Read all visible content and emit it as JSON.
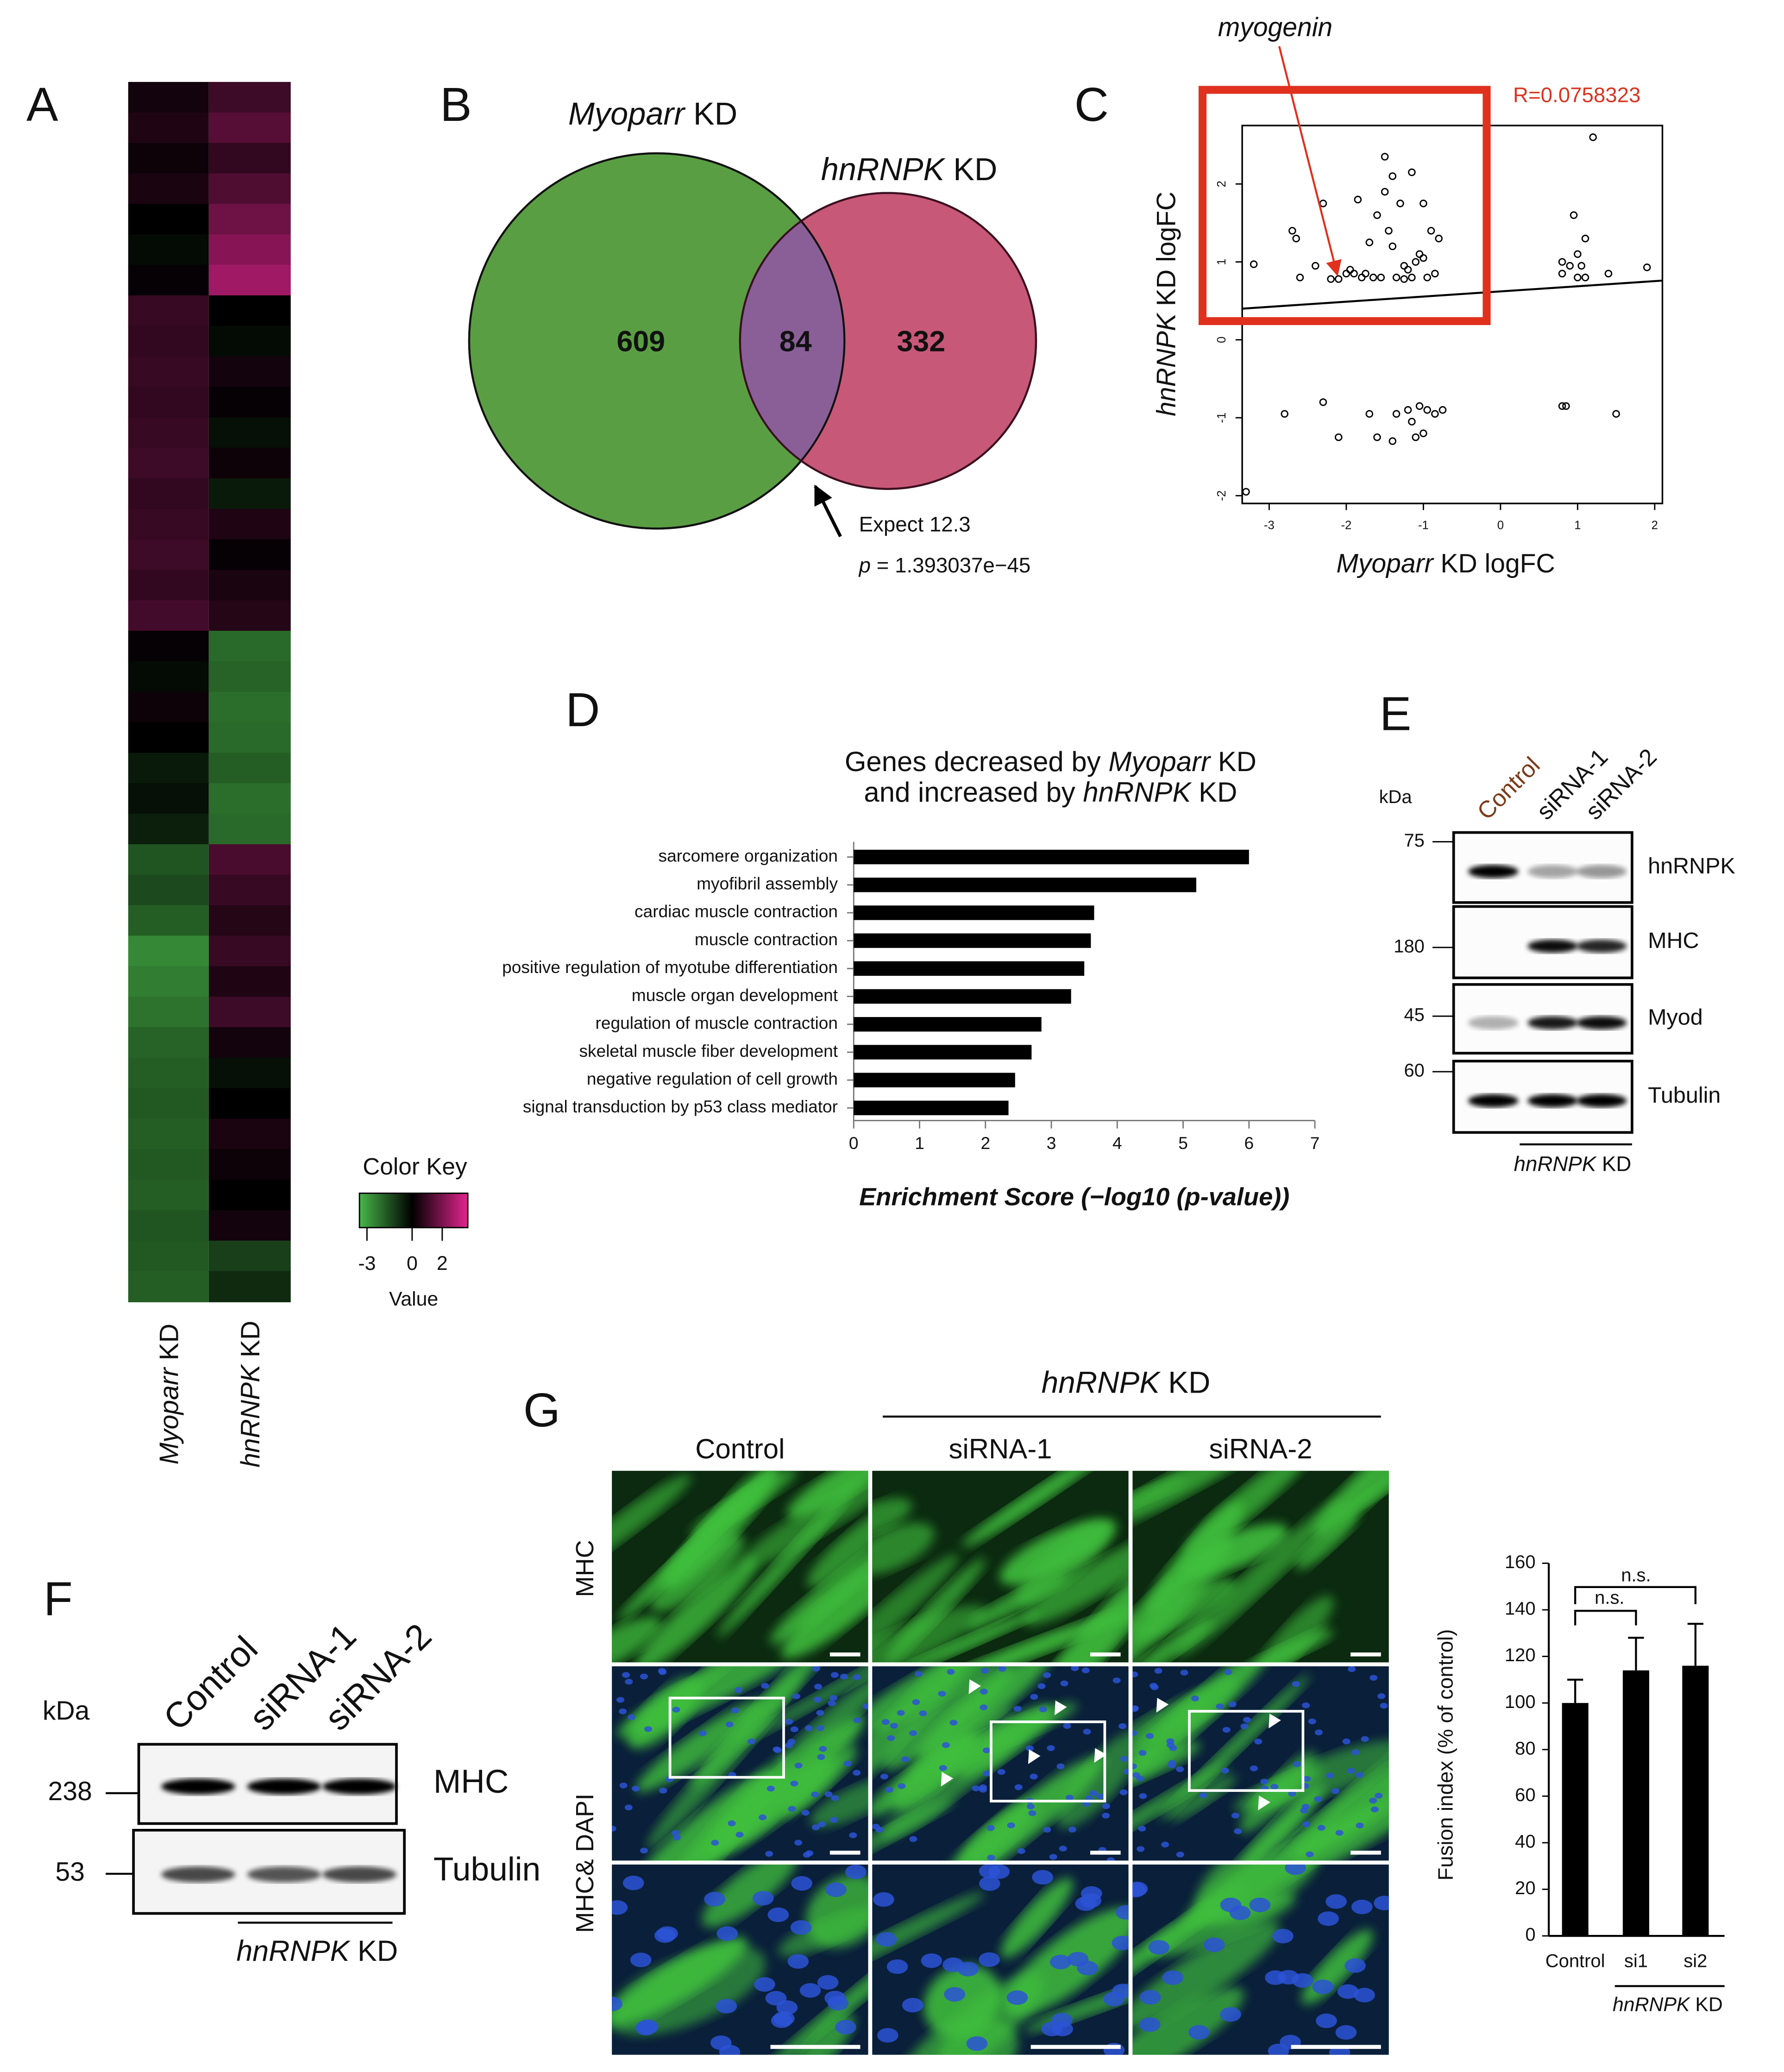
{
  "panel_labels": [
    "A",
    "B",
    "C",
    "D",
    "E",
    "F",
    "G"
  ],
  "heatmap": {
    "columns": [
      "Myoparr KD",
      "hnRNPK KD"
    ],
    "rows": [
      [
        0.3,
        1.0
      ],
      [
        0.5,
        1.4
      ],
      [
        0.2,
        0.8
      ],
      [
        0.4,
        1.3
      ],
      [
        0.0,
        1.8
      ],
      [
        -0.2,
        2.2
      ],
      [
        0.1,
        2.6
      ],
      [
        0.9,
        0.0
      ],
      [
        0.8,
        -0.2
      ],
      [
        0.9,
        0.3
      ],
      [
        0.8,
        0.1
      ],
      [
        0.9,
        -0.3
      ],
      [
        1.0,
        0.2
      ],
      [
        0.8,
        -0.5
      ],
      [
        0.9,
        0.5
      ],
      [
        1.0,
        0.1
      ],
      [
        0.8,
        0.4
      ],
      [
        1.1,
        0.6
      ],
      [
        0.1,
        -2.0
      ],
      [
        -0.2,
        -1.9
      ],
      [
        0.2,
        -2.1
      ],
      [
        0.0,
        -2.0
      ],
      [
        -0.5,
        -1.8
      ],
      [
        -0.3,
        -2.1
      ],
      [
        -0.6,
        -2.0
      ],
      [
        -1.6,
        1.2
      ],
      [
        -1.4,
        0.9
      ],
      [
        -1.8,
        0.6
      ],
      [
        -2.6,
        0.9
      ],
      [
        -2.4,
        0.5
      ],
      [
        -2.2,
        1.0
      ],
      [
        -1.9,
        0.3
      ],
      [
        -1.8,
        -0.3
      ],
      [
        -1.7,
        0.0
      ],
      [
        -1.8,
        0.4
      ],
      [
        -1.7,
        0.2
      ],
      [
        -1.8,
        0.0
      ],
      [
        -1.6,
        0.3
      ],
      [
        -1.7,
        -1.2
      ],
      [
        -1.8,
        -0.8
      ]
    ],
    "color_key": {
      "title": "Color Key",
      "range": [
        -3.5,
        3.7
      ],
      "ticks": [
        -3,
        0,
        2
      ],
      "label": "Value",
      "colors": [
        "#47b748",
        "#000000",
        "#e3248f"
      ]
    }
  },
  "chart_data": [
    {
      "type": "venn",
      "sets": [
        "Myoparr KD",
        "hnRNPK KD"
      ],
      "colors": [
        "#5a9e44",
        "#c85878",
        "#8a5f98"
      ],
      "values": [
        609,
        84,
        332
      ],
      "annotations": [
        "Expect 12.3",
        "p = 1.393037e−45"
      ]
    },
    {
      "type": "scatter",
      "xlabel": "Myoparr KD  logFC",
      "ylabel": "hnRNPK KD logFC",
      "xlim": [
        -3.35,
        2.1
      ],
      "ylim": [
        -2.1,
        2.75
      ],
      "xticks": [
        -3,
        -2,
        -1,
        0,
        1,
        2
      ],
      "yticks": [
        -2,
        -1,
        0,
        1,
        2
      ],
      "x": [
        -3.2,
        -2.7,
        -2.65,
        -2.6,
        -2.4,
        -2.3,
        -2.2,
        -2.1,
        -2.0,
        -1.95,
        -1.9,
        -1.85,
        -1.8,
        -1.75,
        -1.7,
        -1.65,
        -1.6,
        -1.55,
        -1.5,
        -1.5,
        -1.45,
        -1.4,
        -1.4,
        -1.35,
        -1.3,
        -1.25,
        -1.2,
        -1.15,
        -1.1,
        -1.05,
        -1.0,
        -1.0,
        -0.95,
        -0.9,
        -0.85,
        -0.8,
        -1.15,
        -1.25,
        0.8,
        0.8,
        0.9,
        0.95,
        1.0,
        1.0,
        1.05,
        1.1,
        1.1,
        1.2,
        1.4,
        1.9,
        -3.3,
        -2.8,
        -2.3,
        -2.1,
        -1.7,
        -1.6,
        -1.4,
        -1.35,
        -1.2,
        -1.15,
        -1.1,
        -1.05,
        -1.0,
        -0.95,
        -0.85,
        -0.75,
        0.8,
        0.85,
        1.5
      ],
      "values": [
        0.97,
        1.4,
        1.3,
        0.8,
        0.95,
        1.75,
        0.78,
        0.78,
        0.85,
        0.9,
        0.85,
        1.8,
        0.8,
        0.85,
        1.25,
        0.8,
        1.6,
        0.8,
        2.35,
        1.9,
        1.4,
        1.2,
        2.1,
        0.8,
        1.75,
        0.95,
        0.9,
        2.15,
        1.0,
        1.1,
        1.05,
        1.75,
        0.8,
        1.4,
        0.85,
        1.3,
        0.8,
        0.78,
        0.85,
        1.0,
        0.95,
        1.6,
        1.1,
        0.8,
        0.95,
        0.8,
        1.3,
        2.6,
        0.85,
        0.93,
        -1.95,
        -0.95,
        -0.8,
        -1.25,
        -0.95,
        -1.25,
        -1.3,
        -0.95,
        -0.9,
        -1.05,
        -1.25,
        -0.85,
        -1.2,
        -0.9,
        -0.95,
        -0.9,
        -0.85,
        -0.85,
        -0.95
      ],
      "trend": {
        "x": [
          -3.35,
          2.1
        ],
        "values": [
          0.4,
          0.76
        ]
      },
      "stat_label": "R=0.0758323",
      "annotation": "myogenin"
    },
    {
      "type": "bar",
      "orientation": "horizontal",
      "title": [
        "Genes decreased by Myoparr KD",
        "and increased by hnRNPK KD"
      ],
      "xlabel": "Enrichment Score (−log10 (p-value))",
      "color": "#000000",
      "categories": [
        "sarcomere organization",
        "myofibril assembly",
        "cardiac muscle contraction",
        "muscle contraction",
        "positive regulation of myotube differentiation",
        "muscle organ development",
        "regulation of muscle contraction",
        "skeletal muscle fiber development",
        "negative regulation of cell growth",
        "signal transduction by p53 class mediator"
      ],
      "values": [
        6.0,
        5.2,
        3.65,
        3.6,
        3.5,
        3.3,
        2.85,
        2.7,
        2.45,
        2.35
      ],
      "xlim": [
        0,
        7
      ],
      "xticks": [
        0,
        1,
        2,
        3,
        4,
        5,
        6,
        7
      ]
    },
    {
      "type": "bar",
      "orientation": "vertical",
      "ylabel": "Fusion index (% of  control)",
      "color": "#000000",
      "categories": [
        "Control",
        "si1",
        "si2"
      ],
      "values": [
        100,
        114,
        116
      ],
      "errors": [
        10,
        14,
        18
      ],
      "ylim": [
        0,
        160
      ],
      "yticks": [
        0,
        20,
        40,
        60,
        80,
        100,
        120,
        140,
        160
      ],
      "annotations": [
        "n.s.",
        "n.s."
      ],
      "group_label": "hnRNPK KD"
    }
  ],
  "blot_e": {
    "unit": "kDa",
    "lanes": [
      "Control",
      "siRNA-1",
      "siRNA-2"
    ],
    "rows": [
      {
        "name": "hnRNPK",
        "marker": "75"
      },
      {
        "name": "MHC",
        "marker": "180"
      },
      {
        "name": "Myod",
        "marker": "45"
      },
      {
        "name": "Tubulin",
        "marker": "60"
      }
    ],
    "group_label": "hnRNPK KD"
  },
  "blot_f": {
    "unit": "kDa",
    "lanes": [
      "Control",
      "siRNA-1",
      "siRNA-2"
    ],
    "rows": [
      {
        "name": "MHC",
        "marker": "238"
      },
      {
        "name": "Tubulin",
        "marker": "53"
      }
    ],
    "group_label": "hnRNPK KD"
  },
  "micrographs": {
    "group_label": "hnRNPK KD",
    "columns": [
      "Control",
      "siRNA-1",
      "siRNA-2"
    ],
    "rows": [
      "MHC",
      "MHC& DAPI"
    ]
  }
}
